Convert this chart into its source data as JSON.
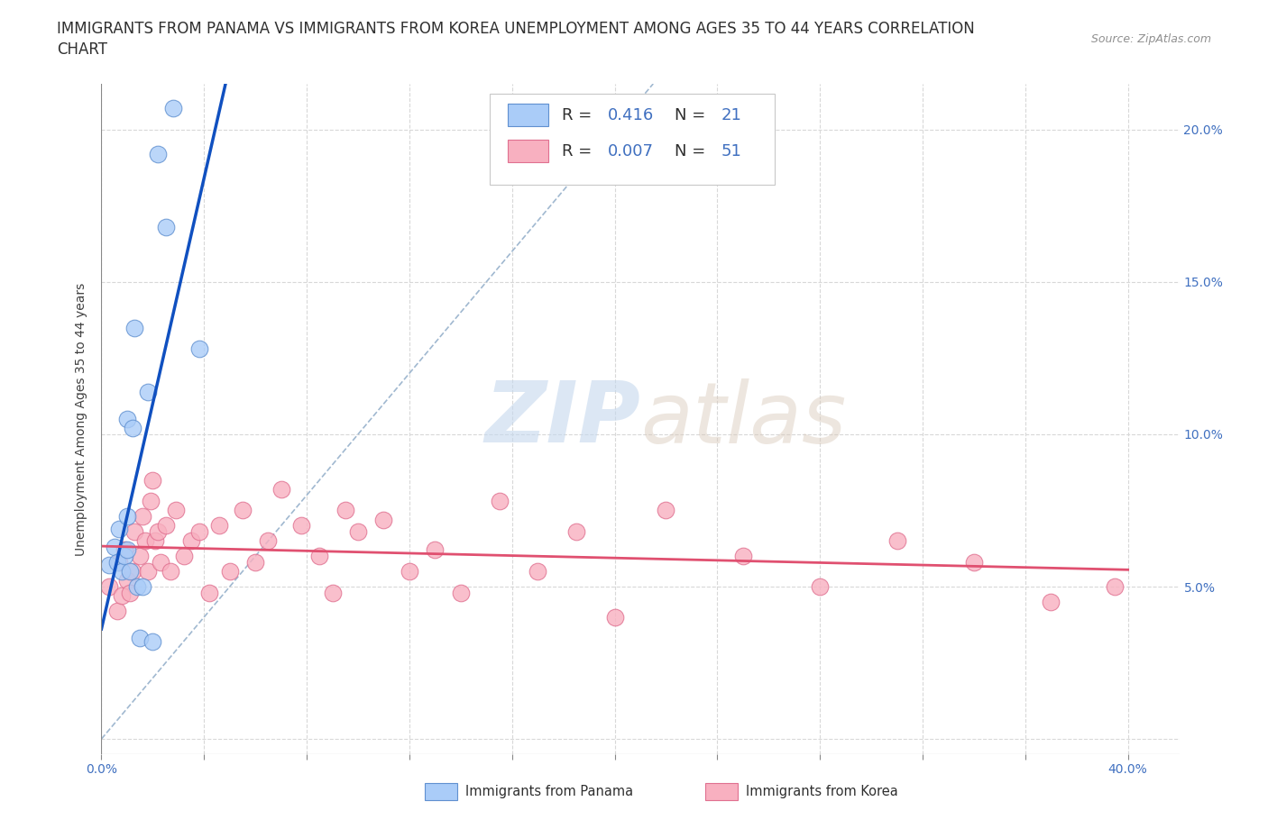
{
  "title_line1": "IMMIGRANTS FROM PANAMA VS IMMIGRANTS FROM KOREA UNEMPLOYMENT AMONG AGES 35 TO 44 YEARS CORRELATION",
  "title_line2": "CHART",
  "source": "Source: ZipAtlas.com",
  "ylabel": "Unemployment Among Ages 35 to 44 years",
  "xlim": [
    0.0,
    0.42
  ],
  "ylim": [
    -0.005,
    0.215
  ],
  "xticks": [
    0.0,
    0.04,
    0.08,
    0.12,
    0.16,
    0.2,
    0.24,
    0.28,
    0.32,
    0.36,
    0.4
  ],
  "xticklabels_sparse": {
    "0": "0.0%",
    "4": "40.0%"
  },
  "yticks": [
    0.0,
    0.05,
    0.1,
    0.15,
    0.2
  ],
  "yticklabels_right": [
    "",
    "5.0%",
    "10.0%",
    "15.0%",
    "20.0%"
  ],
  "panama_color": "#aaccf8",
  "korea_color": "#f8b0c0",
  "panama_edge": "#6090d0",
  "korea_edge": "#e07090",
  "trend_panama_color": "#1050c0",
  "trend_korea_color": "#e05070",
  "ref_line_color": "#a0b8d0",
  "legend_R_panama": "0.416",
  "legend_N_panama": "21",
  "legend_R_korea": "0.007",
  "legend_N_korea": "51",
  "watermark_zip": "ZIP",
  "watermark_atlas": "atlas",
  "background_color": "#ffffff",
  "grid_color": "#d8d8d8",
  "tick_color_blue": "#4070c0",
  "tick_color_dark": "#404040",
  "panama_x": [
    0.003,
    0.005,
    0.006,
    0.007,
    0.008,
    0.009,
    0.01,
    0.01,
    0.01,
    0.011,
    0.012,
    0.013,
    0.014,
    0.015,
    0.016,
    0.018,
    0.02,
    0.022,
    0.025,
    0.028,
    0.038
  ],
  "panama_y": [
    0.057,
    0.063,
    0.058,
    0.069,
    0.055,
    0.06,
    0.062,
    0.105,
    0.073,
    0.055,
    0.102,
    0.135,
    0.05,
    0.033,
    0.05,
    0.114,
    0.032,
    0.192,
    0.168,
    0.207,
    0.128
  ],
  "korea_x": [
    0.003,
    0.006,
    0.007,
    0.008,
    0.009,
    0.01,
    0.011,
    0.012,
    0.013,
    0.015,
    0.016,
    0.017,
    0.018,
    0.019,
    0.02,
    0.021,
    0.022,
    0.023,
    0.025,
    0.027,
    0.029,
    0.032,
    0.035,
    0.038,
    0.042,
    0.046,
    0.05,
    0.055,
    0.06,
    0.065,
    0.07,
    0.078,
    0.085,
    0.09,
    0.095,
    0.1,
    0.11,
    0.12,
    0.13,
    0.14,
    0.155,
    0.17,
    0.185,
    0.2,
    0.22,
    0.25,
    0.28,
    0.31,
    0.34,
    0.37,
    0.395
  ],
  "korea_y": [
    0.05,
    0.042,
    0.058,
    0.047,
    0.062,
    0.052,
    0.048,
    0.055,
    0.068,
    0.06,
    0.073,
    0.065,
    0.055,
    0.078,
    0.085,
    0.065,
    0.068,
    0.058,
    0.07,
    0.055,
    0.075,
    0.06,
    0.065,
    0.068,
    0.048,
    0.07,
    0.055,
    0.075,
    0.058,
    0.065,
    0.082,
    0.07,
    0.06,
    0.048,
    0.075,
    0.068,
    0.072,
    0.055,
    0.062,
    0.048,
    0.078,
    0.055,
    0.068,
    0.04,
    0.075,
    0.06,
    0.05,
    0.065,
    0.058,
    0.045,
    0.05
  ],
  "title_fontsize": 12,
  "axis_label_fontsize": 10,
  "tick_fontsize": 10,
  "legend_fontsize": 13,
  "source_fontsize": 9
}
